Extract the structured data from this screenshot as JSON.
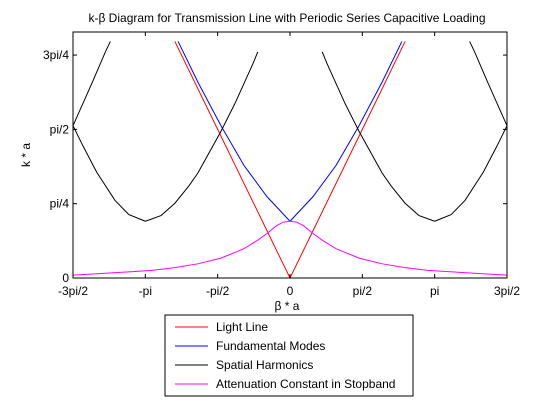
{
  "chart_data": {
    "type": "line",
    "title": "k-β Diagram for Transmission Line with Periodic Series Capacitive Loading",
    "xlabel": "β * a",
    "ylabel": "k * a",
    "xlim": [
      -4.712389,
      4.712389
    ],
    "ylim": [
      0,
      2.6
    ],
    "xticks": [
      {
        "value": -4.712389,
        "label": "-3pi/2"
      },
      {
        "value": -3.141593,
        "label": "-pi"
      },
      {
        "value": -1.570796,
        "label": "-pi/2"
      },
      {
        "value": 0,
        "label": "0"
      },
      {
        "value": 1.570796,
        "label": "pi/2"
      },
      {
        "value": 3.141593,
        "label": "pi"
      },
      {
        "value": 4.712389,
        "label": "3pi/2"
      }
    ],
    "yticks": [
      {
        "value": 0,
        "label": "0"
      },
      {
        "value": 0.785398,
        "label": "pi/4"
      },
      {
        "value": 1.570796,
        "label": "pi/2"
      },
      {
        "value": 2.356194,
        "label": "3pi/4"
      }
    ],
    "grid": false,
    "legend_position": "below-plot",
    "series": [
      {
        "name": "Light Line",
        "color": "#ff0000",
        "segments": [
          {
            "x": [
              -2.5,
              0
            ],
            "y": [
              2.5,
              0
            ]
          },
          {
            "x": [
              0,
              2.5
            ],
            "y": [
              0,
              2.5
            ]
          }
        ]
      },
      {
        "name": "Fundamental Modes",
        "color": "#0000ff",
        "segments": [
          {
            "x": [
              -2.43,
              -2.0,
              -1.5,
              -1.0,
              -0.5,
              0
            ],
            "y": [
              2.5,
              2.07,
              1.61,
              1.19,
              0.86,
              0.6
            ]
          },
          {
            "x": [
              0,
              0.5,
              1.0,
              1.5,
              2.0,
              2.43
            ],
            "y": [
              0.6,
              0.86,
              1.19,
              1.61,
              2.07,
              2.5
            ]
          }
        ]
      },
      {
        "name": "Spatial Harmonics",
        "color": "#000000",
        "segments": [
          {
            "x": [
              -4.712389,
              -4.5,
              -4.2,
              -3.8,
              -3.5,
              -3.141593
            ],
            "y": [
              1.61,
              1.4,
              1.12,
              0.82,
              0.67,
              0.6
            ]
          },
          {
            "x": [
              -3.141593,
              -2.8,
              -2.5,
              -2.2,
              -2.0,
              -1.5,
              -1.2,
              -0.8,
              -0.7
            ],
            "y": [
              0.6,
              0.66,
              0.79,
              0.97,
              1.11,
              1.55,
              1.84,
              2.27,
              2.39
            ]
          },
          {
            "x": [
              -3.9,
              -4.0,
              -4.3,
              -4.712389
            ],
            "y": [
              2.5,
              2.4,
              2.06,
              1.61
            ]
          },
          {
            "x": [
              0.7,
              0.8,
              1.2,
              1.5,
              2.0,
              2.2,
              2.5,
              2.8,
              3.141593
            ],
            "y": [
              2.39,
              2.27,
              1.84,
              1.55,
              1.11,
              0.97,
              0.79,
              0.66,
              0.6
            ]
          },
          {
            "x": [
              3.141593,
              3.5,
              3.8,
              4.2,
              4.5,
              4.712389
            ],
            "y": [
              0.6,
              0.67,
              0.82,
              1.12,
              1.4,
              1.61
            ]
          },
          {
            "x": [
              3.9,
              4.0,
              4.3,
              4.712389
            ],
            "y": [
              2.5,
              2.4,
              2.06,
              1.61
            ]
          }
        ]
      },
      {
        "name": "Attenuation Constant in Stopband",
        "color": "#ff00ff",
        "segments": [
          {
            "x": [
              -4.712389,
              -4.0,
              -3.0,
              -2.5,
              -2.0,
              -1.5,
              -1.0,
              -0.7,
              -0.5,
              -0.3,
              -0.15,
              0
            ],
            "y": [
              0.03,
              0.05,
              0.08,
              0.11,
              0.15,
              0.21,
              0.31,
              0.4,
              0.47,
              0.55,
              0.59,
              0.6
            ]
          },
          {
            "x": [
              0,
              0.15,
              0.3,
              0.5,
              0.7,
              1.0,
              1.5,
              2.0,
              2.5,
              3.0,
              4.0,
              4.712389
            ],
            "y": [
              0.6,
              0.59,
              0.55,
              0.47,
              0.4,
              0.31,
              0.21,
              0.15,
              0.11,
              0.08,
              0.05,
              0.03
            ]
          }
        ]
      }
    ]
  }
}
